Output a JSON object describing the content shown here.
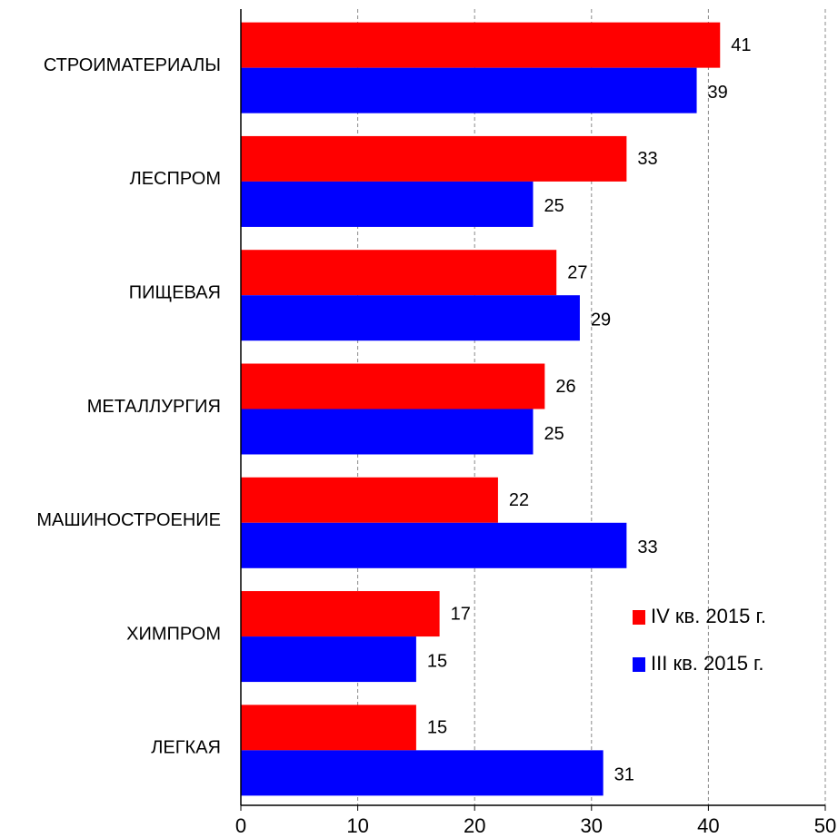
{
  "chart_data": {
    "type": "hbar",
    "categories": [
      "СТРОИМАТЕРИАЛЫ",
      "ЛЕСПРОМ",
      "ПИЩЕВАЯ",
      "МЕТАЛЛУРГИЯ",
      "МАШИНОСТРОЕНИЕ",
      "ХИМПРОМ",
      "ЛЕГКАЯ"
    ],
    "series": [
      {
        "name": "IV кв. 2015 г.",
        "color": "#ff0000",
        "values": [
          41,
          33,
          27,
          26,
          22,
          17,
          15
        ]
      },
      {
        "name": "III кв. 2015 г.",
        "color": "#0000ff",
        "values": [
          39,
          25,
          29,
          25,
          33,
          15,
          31
        ]
      }
    ],
    "xlim": [
      0,
      50
    ],
    "xticks": [
      0,
      10,
      20,
      30,
      40,
      50
    ],
    "grid": true,
    "legend": "lower right"
  }
}
